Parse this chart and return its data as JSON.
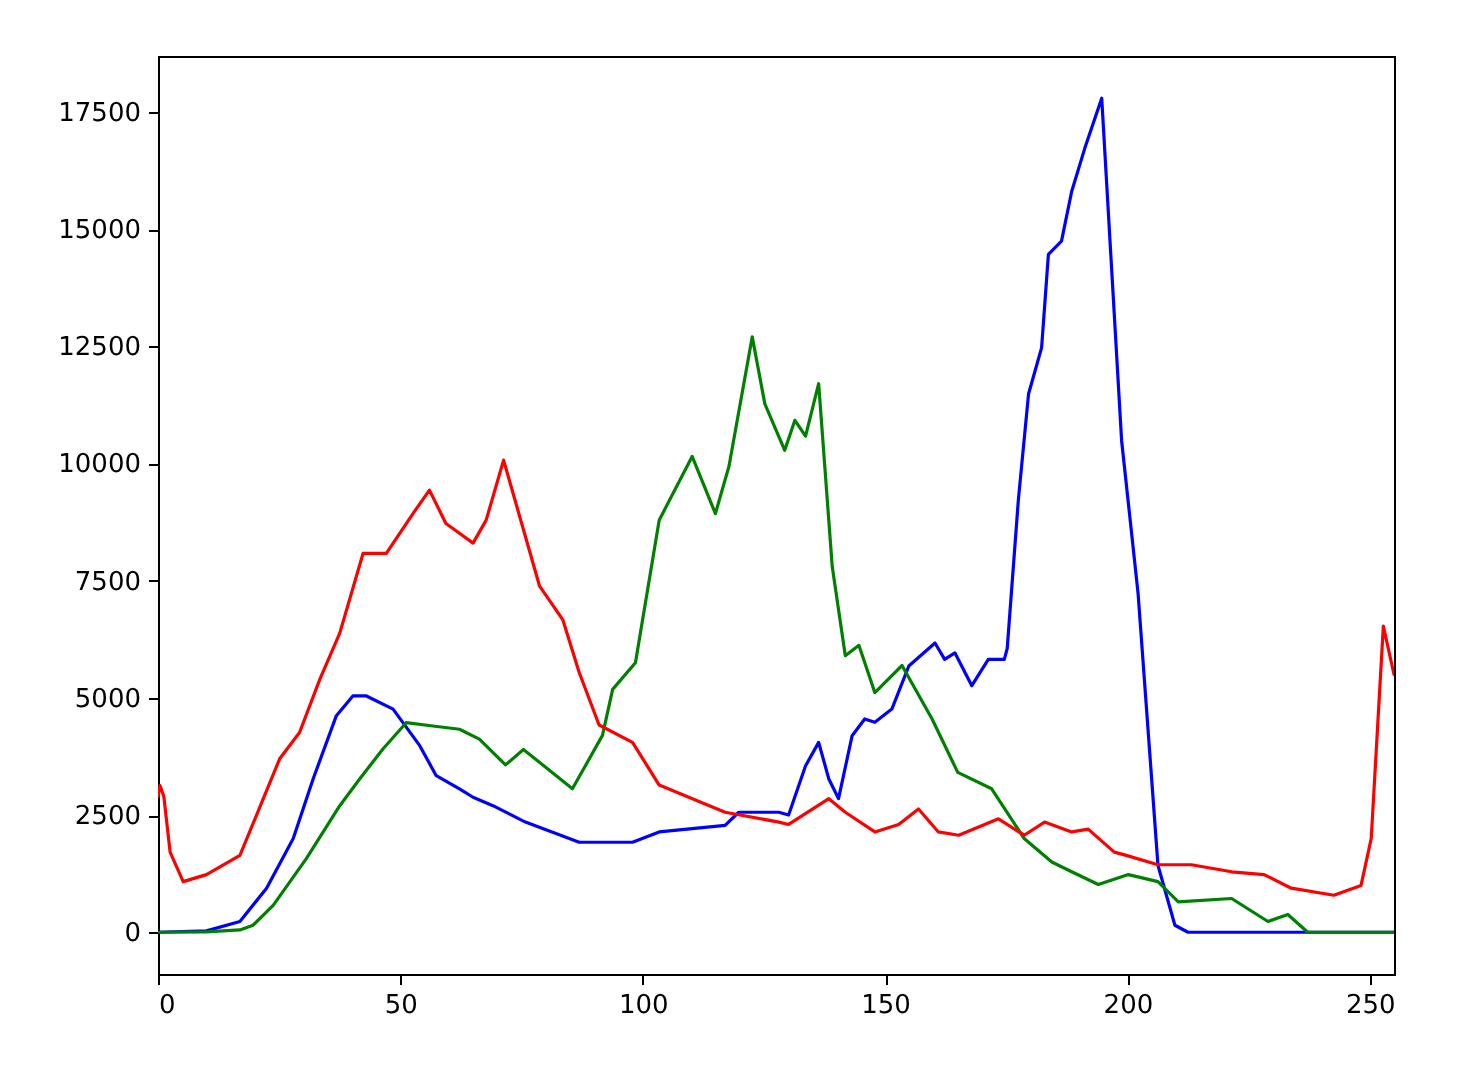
{
  "chart_data": {
    "type": "line",
    "xlim": [
      0,
      255
    ],
    "ylim": [
      -890,
      18690
    ],
    "xticks": [
      0,
      50,
      100,
      150,
      200,
      250
    ],
    "yticks": [
      0,
      2500,
      5000,
      7500,
      10000,
      12500,
      15000,
      17500
    ],
    "grid": false,
    "line_style": "solid",
    "marker": "none",
    "series": [
      {
        "color": "#0000ff",
        "x": [
          0,
          10,
          16.9,
          22.4,
          27.9,
          32,
          36.8,
          40.2,
          43,
          48.5,
          54,
          57.4,
          62.2,
          65,
          69.1,
          75.8,
          86.9,
          97.9,
          103.4,
          117,
          119.8,
          128.1,
          130.1,
          133.6,
          136.3,
          138.4,
          140.4,
          143.2,
          145.8,
          147.9,
          151.4,
          154.9,
          160.3,
          162.3,
          164.4,
          167.9,
          171.3,
          174.6,
          175.2,
          177.5,
          179.6,
          182.3,
          183.7,
          186.4,
          188.5,
          191.2,
          194.7,
          198.8,
          202.2,
          206.3,
          209.8,
          212.5,
          255
        ],
        "values": [
          0,
          30,
          230,
          940,
          2000,
          3270,
          4620,
          5040,
          5040,
          4760,
          3980,
          3340,
          3060,
          2880,
          2700,
          2350,
          1920,
          1920,
          2140,
          2280,
          2560,
          2560,
          2500,
          3550,
          4050,
          3270,
          2850,
          4190,
          4550,
          4480,
          4760,
          5680,
          6170,
          5820,
          5960,
          5260,
          5820,
          5820,
          6050,
          9220,
          11480,
          12470,
          14460,
          14740,
          15800,
          16720,
          17790,
          10490,
          7230,
          1430,
          150,
          0,
          0
        ]
      },
      {
        "color": "#008000",
        "x": [
          0,
          10,
          16.9,
          19.6,
          23.8,
          30.6,
          37.5,
          41.6,
          46.4,
          51.2,
          56.7,
          62.2,
          66.3,
          71.7,
          75.4,
          85.5,
          91.7,
          93.8,
          98.5,
          103.4,
          110.2,
          115,
          117.8,
          122.6,
          125.2,
          129.3,
          131.4,
          133.6,
          136.3,
          139.1,
          141.8,
          144.6,
          147.9,
          153.5,
          159.7,
          165,
          172,
          178.7,
          184.4,
          188.5,
          194,
          200.2,
          206.3,
          210.5,
          221.5,
          229,
          233.1,
          237.2,
          255
        ],
        "values": [
          0,
          10,
          50,
          150,
          580,
          1570,
          2700,
          3270,
          3910,
          4470,
          4400,
          4330,
          4120,
          3570,
          3900,
          3060,
          4200,
          5180,
          5750,
          8790,
          10150,
          8930,
          9940,
          12700,
          11270,
          10280,
          10920,
          10580,
          11700,
          7800,
          5900,
          6120,
          5110,
          5690,
          4550,
          3410,
          3060,
          2000,
          1500,
          1290,
          1020,
          1230,
          1080,
          650,
          720,
          230,
          380,
          0,
          0
        ]
      },
      {
        "color": "#ff0000",
        "x": [
          0,
          0.4,
          1.2,
          2.5,
          5.2,
          10,
          16.9,
          18.9,
          25.1,
          29.2,
          33.4,
          37.5,
          42.3,
          47.1,
          52.6,
          56,
          59.4,
          62.2,
          65,
          67.7,
          71.3,
          78.7,
          83.5,
          86.9,
          91,
          97.9,
          103.4,
          117,
          128.1,
          130.1,
          138.4,
          141.8,
          147.9,
          152.8,
          156.9,
          161,
          165.2,
          173.4,
          178.7,
          182.9,
          188.5,
          191.9,
          197.3,
          199.4,
          206.3,
          213.2,
          221.5,
          228.2,
          233.8,
          242.6,
          248.2,
          250.3,
          252.8,
          255
        ],
        "values": [
          2900,
          3130,
          2900,
          1710,
          1080,
          1230,
          1640,
          2140,
          3700,
          4260,
          5400,
          6380,
          8080,
          8080,
          8930,
          9430,
          8720,
          8510,
          8300,
          8790,
          10070,
          7390,
          6670,
          5540,
          4420,
          4050,
          3140,
          2560,
          2350,
          2300,
          2850,
          2560,
          2140,
          2300,
          2630,
          2140,
          2070,
          2420,
          2070,
          2350,
          2140,
          2200,
          1710,
          1650,
          1440,
          1440,
          1290,
          1230,
          940,
          790,
          1000,
          2000,
          6530,
          5500
        ]
      }
    ]
  }
}
